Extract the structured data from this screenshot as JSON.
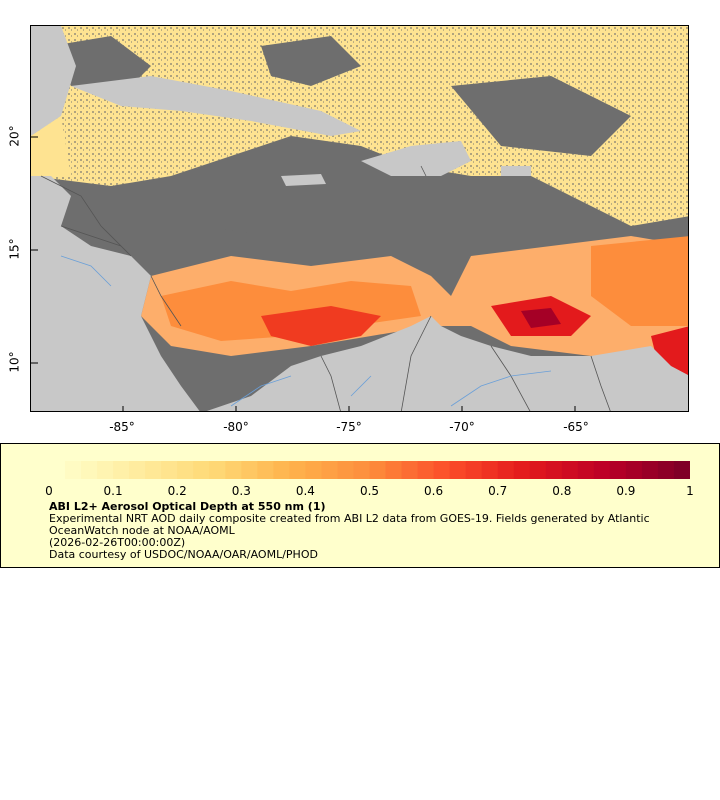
{
  "map": {
    "lon_ticks": [
      "-85°",
      "-80°",
      "-75°",
      "-70°",
      "-65°"
    ],
    "lat_ticks": [
      "20°",
      "15°",
      "10°"
    ],
    "lon_values": [
      -85,
      -80,
      -75,
      -70,
      -65
    ],
    "lat_values": [
      20,
      15,
      10
    ],
    "lon_range": [
      -89,
      -60
    ],
    "lat_range": [
      8,
      25
    ],
    "land_color": "#c8c8c8",
    "nodata_color": "#6e6e6e"
  },
  "colorbar": {
    "ticks": [
      "0",
      "0.1",
      "0.2",
      "0.3",
      "0.4",
      "0.5",
      "0.6",
      "0.7",
      "0.8",
      "0.9",
      "1"
    ],
    "range": [
      0,
      1
    ],
    "colors": [
      "#ffffcc",
      "#ffeda0",
      "#fed976",
      "#feb24c",
      "#fd8d3c",
      "#fc4e2a",
      "#e31a1c",
      "#bd0026",
      "#800026"
    ]
  },
  "legend": {
    "title": "ABI L2+ Aerosol Optical Depth at 550 nm (1)",
    "line1": "Experimental NRT AOD daily composite created from ABI L2 data from GOES-19. Fields generated by Atlantic OceanWatch node at NOAA/AOML",
    "line2": "(2026-02-26T00:00:00Z)",
    "line3": "Data courtesy of USDOC/NOAA/OAR/AOML/PHOD"
  }
}
